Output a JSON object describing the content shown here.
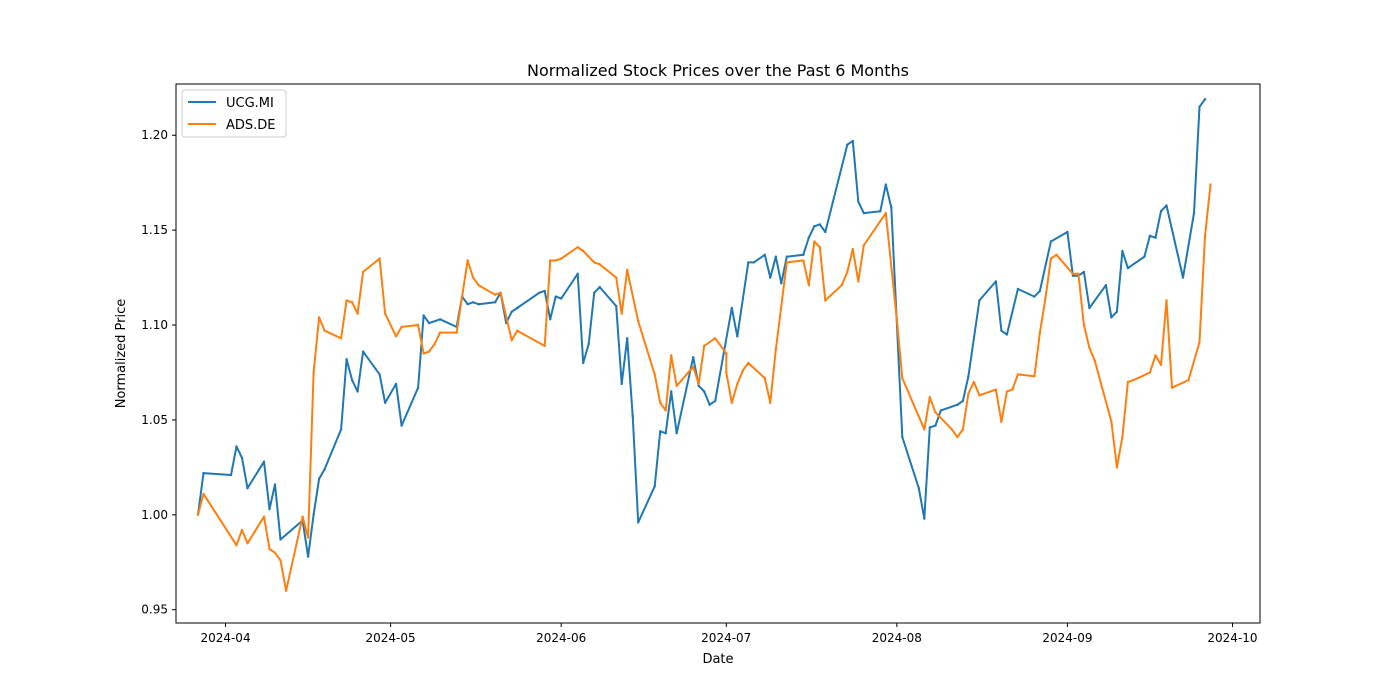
{
  "chart_data": {
    "type": "line",
    "title": "Normalized Stock Prices over the Past 6 Months",
    "xlabel": "Date",
    "ylabel": "Normalized Price",
    "xlim": [
      "2024-03-23",
      "2024-10-06"
    ],
    "ylim": [
      0.943,
      1.227
    ],
    "x_ticks": [
      {
        "date": "2024-04-01",
        "label": "2024-04"
      },
      {
        "date": "2024-05-01",
        "label": "2024-05"
      },
      {
        "date": "2024-06-01",
        "label": "2024-06"
      },
      {
        "date": "2024-07-01",
        "label": "2024-07"
      },
      {
        "date": "2024-08-01",
        "label": "2024-08"
      },
      {
        "date": "2024-09-01",
        "label": "2024-09"
      },
      {
        "date": "2024-10-01",
        "label": "2024-10"
      }
    ],
    "y_ticks": [
      {
        "value": 0.95,
        "label": "0.95"
      },
      {
        "value": 1.0,
        "label": "1.00"
      },
      {
        "value": 1.05,
        "label": "1.05"
      },
      {
        "value": 1.1,
        "label": "1.10"
      },
      {
        "value": 1.15,
        "label": "1.15"
      },
      {
        "value": 1.2,
        "label": "1.20"
      }
    ],
    "grid": false,
    "legend_position": "top-left",
    "series": [
      {
        "name": "UCG.MI",
        "color": "#1f77b4",
        "points": [
          [
            "2024-03-27",
            1.0
          ],
          [
            "2024-03-28",
            1.022
          ],
          [
            "2024-04-02",
            1.021
          ],
          [
            "2024-04-03",
            1.036
          ],
          [
            "2024-04-04",
            1.03
          ],
          [
            "2024-04-05",
            1.014
          ],
          [
            "2024-04-08",
            1.028
          ],
          [
            "2024-04-09",
            1.003
          ],
          [
            "2024-04-10",
            1.016
          ],
          [
            "2024-04-11",
            0.987
          ],
          [
            "2024-04-15",
            0.997
          ],
          [
            "2024-04-16",
            0.978
          ],
          [
            "2024-04-17",
            1.0
          ],
          [
            "2024-04-18",
            1.019
          ],
          [
            "2024-04-19",
            1.024
          ],
          [
            "2024-04-22",
            1.045
          ],
          [
            "2024-04-23",
            1.082
          ],
          [
            "2024-04-24",
            1.071
          ],
          [
            "2024-04-25",
            1.065
          ],
          [
            "2024-04-26",
            1.086
          ],
          [
            "2024-04-29",
            1.074
          ],
          [
            "2024-04-30",
            1.059
          ],
          [
            "2024-05-02",
            1.069
          ],
          [
            "2024-05-03",
            1.047
          ],
          [
            "2024-05-06",
            1.067
          ],
          [
            "2024-05-07",
            1.105
          ],
          [
            "2024-05-08",
            1.101
          ],
          [
            "2024-05-10",
            1.103
          ],
          [
            "2024-05-13",
            1.099
          ],
          [
            "2024-05-14",
            1.115
          ],
          [
            "2024-05-15",
            1.111
          ],
          [
            "2024-05-16",
            1.112
          ],
          [
            "2024-05-17",
            1.111
          ],
          [
            "2024-05-20",
            1.112
          ],
          [
            "2024-05-21",
            1.117
          ],
          [
            "2024-05-22",
            1.101
          ],
          [
            "2024-05-23",
            1.107
          ],
          [
            "2024-05-24",
            1.109
          ],
          [
            "2024-05-28",
            1.117
          ],
          [
            "2024-05-29",
            1.118
          ],
          [
            "2024-05-30",
            1.103
          ],
          [
            "2024-05-31",
            1.115
          ],
          [
            "2024-06-01",
            1.114
          ],
          [
            "2024-06-04",
            1.127
          ],
          [
            "2024-06-05",
            1.08
          ],
          [
            "2024-06-06",
            1.09
          ],
          [
            "2024-06-07",
            1.117
          ],
          [
            "2024-06-08",
            1.12
          ],
          [
            "2024-06-11",
            1.11
          ],
          [
            "2024-06-12",
            1.069
          ],
          [
            "2024-06-13",
            1.093
          ],
          [
            "2024-06-14",
            1.052
          ],
          [
            "2024-06-15",
            0.996
          ],
          [
            "2024-06-18",
            1.015
          ],
          [
            "2024-06-19",
            1.044
          ],
          [
            "2024-06-20",
            1.043
          ],
          [
            "2024-06-21",
            1.065
          ],
          [
            "2024-06-22",
            1.043
          ],
          [
            "2024-06-25",
            1.083
          ],
          [
            "2024-06-26",
            1.068
          ],
          [
            "2024-06-27",
            1.065
          ],
          [
            "2024-06-28",
            1.058
          ],
          [
            "2024-06-29",
            1.06
          ],
          [
            "2024-07-02",
            1.109
          ],
          [
            "2024-07-03",
            1.094
          ],
          [
            "2024-07-05",
            1.133
          ],
          [
            "2024-07-06",
            1.133
          ],
          [
            "2024-07-08",
            1.137
          ],
          [
            "2024-07-09",
            1.125
          ],
          [
            "2024-07-10",
            1.136
          ],
          [
            "2024-07-11",
            1.122
          ],
          [
            "2024-07-12",
            1.136
          ],
          [
            "2024-07-15",
            1.137
          ],
          [
            "2024-07-16",
            1.146
          ],
          [
            "2024-07-17",
            1.152
          ],
          [
            "2024-07-18",
            1.153
          ],
          [
            "2024-07-19",
            1.149
          ],
          [
            "2024-07-23",
            1.195
          ],
          [
            "2024-07-24",
            1.197
          ],
          [
            "2024-07-25",
            1.165
          ],
          [
            "2024-07-26",
            1.159
          ],
          [
            "2024-07-29",
            1.16
          ],
          [
            "2024-07-30",
            1.174
          ],
          [
            "2024-07-31",
            1.162
          ],
          [
            "2024-08-02",
            1.041
          ],
          [
            "2024-08-05",
            1.014
          ],
          [
            "2024-08-06",
            0.998
          ],
          [
            "2024-08-07",
            1.046
          ],
          [
            "2024-08-08",
            1.047
          ],
          [
            "2024-08-09",
            1.055
          ],
          [
            "2024-08-12",
            1.058
          ],
          [
            "2024-08-13",
            1.06
          ],
          [
            "2024-08-14",
            1.073
          ],
          [
            "2024-08-16",
            1.113
          ],
          [
            "2024-08-19",
            1.123
          ],
          [
            "2024-08-20",
            1.097
          ],
          [
            "2024-08-21",
            1.095
          ],
          [
            "2024-08-23",
            1.119
          ],
          [
            "2024-08-26",
            1.115
          ],
          [
            "2024-08-27",
            1.118
          ],
          [
            "2024-08-29",
            1.144
          ],
          [
            "2024-09-01",
            1.149
          ],
          [
            "2024-09-02",
            1.126
          ],
          [
            "2024-09-03",
            1.126
          ],
          [
            "2024-09-04",
            1.128
          ],
          [
            "2024-09-05",
            1.109
          ],
          [
            "2024-09-08",
            1.121
          ],
          [
            "2024-09-09",
            1.104
          ],
          [
            "2024-09-10",
            1.107
          ],
          [
            "2024-09-11",
            1.139
          ],
          [
            "2024-09-12",
            1.13
          ],
          [
            "2024-09-15",
            1.136
          ],
          [
            "2024-09-16",
            1.147
          ],
          [
            "2024-09-17",
            1.146
          ],
          [
            "2024-09-18",
            1.16
          ],
          [
            "2024-09-19",
            1.163
          ],
          [
            "2024-09-22",
            1.125
          ],
          [
            "2024-09-24",
            1.159
          ],
          [
            "2024-09-25",
            1.215
          ],
          [
            "2024-09-26",
            1.219
          ]
        ]
      },
      {
        "name": "ADS.DE",
        "color": "#ff7f0e",
        "points": [
          [
            "2024-03-27",
            1.0
          ],
          [
            "2024-03-28",
            1.011
          ],
          [
            "2024-04-03",
            0.984
          ],
          [
            "2024-04-04",
            0.992
          ],
          [
            "2024-04-05",
            0.985
          ],
          [
            "2024-04-08",
            0.999
          ],
          [
            "2024-04-09",
            0.982
          ],
          [
            "2024-04-10",
            0.98
          ],
          [
            "2024-04-11",
            0.976
          ],
          [
            "2024-04-12",
            0.96
          ],
          [
            "2024-04-15",
            0.999
          ],
          [
            "2024-04-16",
            0.988
          ],
          [
            "2024-04-17",
            1.075
          ],
          [
            "2024-04-18",
            1.104
          ],
          [
            "2024-04-19",
            1.097
          ],
          [
            "2024-04-22",
            1.093
          ],
          [
            "2024-04-23",
            1.113
          ],
          [
            "2024-04-24",
            1.112
          ],
          [
            "2024-04-25",
            1.106
          ],
          [
            "2024-04-26",
            1.128
          ],
          [
            "2024-04-29",
            1.135
          ],
          [
            "2024-04-30",
            1.106
          ],
          [
            "2024-05-02",
            1.094
          ],
          [
            "2024-05-03",
            1.099
          ],
          [
            "2024-05-06",
            1.1
          ],
          [
            "2024-05-07",
            1.085
          ],
          [
            "2024-05-08",
            1.086
          ],
          [
            "2024-05-09",
            1.09
          ],
          [
            "2024-05-10",
            1.096
          ],
          [
            "2024-05-13",
            1.096
          ],
          [
            "2024-05-15",
            1.134
          ],
          [
            "2024-05-16",
            1.125
          ],
          [
            "2024-05-17",
            1.121
          ],
          [
            "2024-05-20",
            1.116
          ],
          [
            "2024-05-21",
            1.117
          ],
          [
            "2024-05-23",
            1.092
          ],
          [
            "2024-05-24",
            1.097
          ],
          [
            "2024-05-29",
            1.089
          ],
          [
            "2024-05-30",
            1.134
          ],
          [
            "2024-05-31",
            1.134
          ],
          [
            "2024-06-01",
            1.135
          ],
          [
            "2024-06-04",
            1.141
          ],
          [
            "2024-06-05",
            1.139
          ],
          [
            "2024-06-06",
            1.136
          ],
          [
            "2024-06-07",
            1.133
          ],
          [
            "2024-06-08",
            1.132
          ],
          [
            "2024-06-11",
            1.125
          ],
          [
            "2024-06-12",
            1.106
          ],
          [
            "2024-06-13",
            1.129
          ],
          [
            "2024-06-15",
            1.102
          ],
          [
            "2024-06-18",
            1.074
          ],
          [
            "2024-06-19",
            1.059
          ],
          [
            "2024-06-20",
            1.055
          ],
          [
            "2024-06-21",
            1.084
          ],
          [
            "2024-06-22",
            1.068
          ],
          [
            "2024-06-25",
            1.078
          ],
          [
            "2024-06-26",
            1.069
          ],
          [
            "2024-06-27",
            1.089
          ],
          [
            "2024-06-29",
            1.093
          ],
          [
            "2024-07-01",
            1.085
          ],
          [
            "2024-07-01",
            1.075
          ],
          [
            "2024-07-02",
            1.059
          ],
          [
            "2024-07-03",
            1.069
          ],
          [
            "2024-07-04",
            1.076
          ],
          [
            "2024-07-05",
            1.08
          ],
          [
            "2024-07-08",
            1.072
          ],
          [
            "2024-07-09",
            1.059
          ],
          [
            "2024-07-10",
            1.087
          ],
          [
            "2024-07-12",
            1.133
          ],
          [
            "2024-07-15",
            1.134
          ],
          [
            "2024-07-16",
            1.121
          ],
          [
            "2024-07-17",
            1.144
          ],
          [
            "2024-07-18",
            1.141
          ],
          [
            "2024-07-19",
            1.113
          ],
          [
            "2024-07-22",
            1.121
          ],
          [
            "2024-07-23",
            1.128
          ],
          [
            "2024-07-24",
            1.14
          ],
          [
            "2024-07-25",
            1.123
          ],
          [
            "2024-07-26",
            1.142
          ],
          [
            "2024-07-30",
            1.159
          ],
          [
            "2024-08-01",
            1.103
          ],
          [
            "2024-08-02",
            1.072
          ],
          [
            "2024-08-06",
            1.045
          ],
          [
            "2024-08-07",
            1.062
          ],
          [
            "2024-08-08",
            1.054
          ],
          [
            "2024-08-11",
            1.045
          ],
          [
            "2024-08-12",
            1.041
          ],
          [
            "2024-08-13",
            1.045
          ],
          [
            "2024-08-14",
            1.064
          ],
          [
            "2024-08-15",
            1.07
          ],
          [
            "2024-08-16",
            1.063
          ],
          [
            "2024-08-19",
            1.066
          ],
          [
            "2024-08-20",
            1.049
          ],
          [
            "2024-08-21",
            1.065
          ],
          [
            "2024-08-22",
            1.066
          ],
          [
            "2024-08-23",
            1.074
          ],
          [
            "2024-08-26",
            1.073
          ],
          [
            "2024-08-27",
            1.096
          ],
          [
            "2024-08-28",
            1.114
          ],
          [
            "2024-08-29",
            1.135
          ],
          [
            "2024-08-30",
            1.137
          ],
          [
            "2024-09-02",
            1.127
          ],
          [
            "2024-09-03",
            1.127
          ],
          [
            "2024-09-04",
            1.1
          ],
          [
            "2024-09-05",
            1.088
          ],
          [
            "2024-09-06",
            1.081
          ],
          [
            "2024-09-09",
            1.049
          ],
          [
            "2024-09-10",
            1.025
          ],
          [
            "2024-09-11",
            1.041
          ],
          [
            "2024-09-12",
            1.07
          ],
          [
            "2024-09-13",
            1.071
          ],
          [
            "2024-09-16",
            1.075
          ],
          [
            "2024-09-17",
            1.084
          ],
          [
            "2024-09-18",
            1.079
          ],
          [
            "2024-09-19",
            1.113
          ],
          [
            "2024-09-20",
            1.067
          ],
          [
            "2024-09-23",
            1.071
          ],
          [
            "2024-09-25",
            1.091
          ],
          [
            "2024-09-26",
            1.147
          ],
          [
            "2024-09-27",
            1.174
          ]
        ]
      }
    ]
  }
}
